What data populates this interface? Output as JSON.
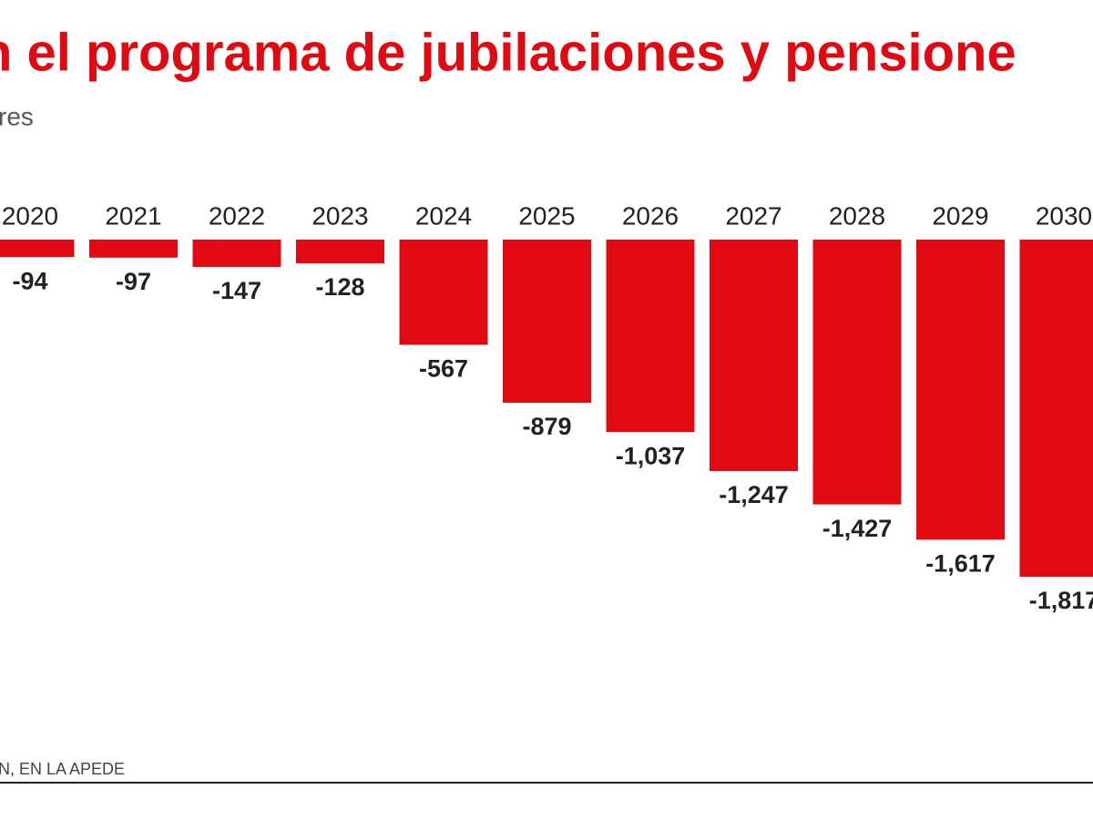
{
  "chart_data": {
    "type": "bar",
    "title": "n el programa de jubilaciones y pensione",
    "subtitle": "res",
    "source": "N, EN LA APEDE",
    "categories": [
      "2020",
      "2021",
      "2022",
      "2023",
      "2024",
      "2025",
      "2026",
      "2027",
      "2028",
      "2029",
      "2030"
    ],
    "values": [
      -94,
      -97,
      -147,
      -128,
      -567,
      -879,
      -1037,
      -1247,
      -1427,
      -1617,
      -1817
    ],
    "value_labels": [
      "-94",
      "-97",
      "-147",
      "-128",
      "-567",
      "-879",
      "-1,037",
      "-1,247",
      "-1,427",
      "-1,617",
      "-1,817"
    ],
    "color": "#e10a12",
    "ylim": [
      -3000,
      0
    ]
  }
}
